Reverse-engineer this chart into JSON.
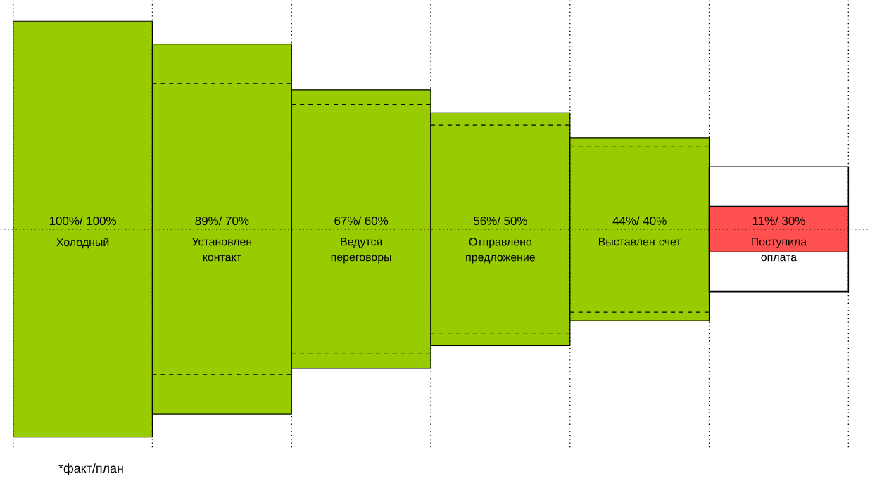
{
  "chart_data": {
    "type": "other",
    "categories": [
      "Холодный",
      "Установлен контакт",
      "Ведутся переговоры",
      "Отправлено предложение",
      "Выставлен счет",
      "Поступила оплата"
    ],
    "series": [
      {
        "values": [
          100,
          89,
          67,
          56,
          44,
          11
        ],
        "colors": [
          "#99cc00",
          "#99cc00",
          "#99cc00",
          "#99cc00",
          "#99cc00",
          "#ff5050"
        ],
        "value_labels": [
          "100%/",
          "89%/",
          "67%/",
          "56%/",
          "44%/",
          "11%/"
        ]
      },
      {
        "values": [
          100,
          70,
          60,
          50,
          40,
          30
        ],
        "color": "#000000",
        "value_labels": [
          "100%",
          "70%",
          "60%",
          "50%",
          "40%",
          "30%"
        ]
      }
    ],
    "annotations": [
      "*факт/план"
    ]
  }
}
